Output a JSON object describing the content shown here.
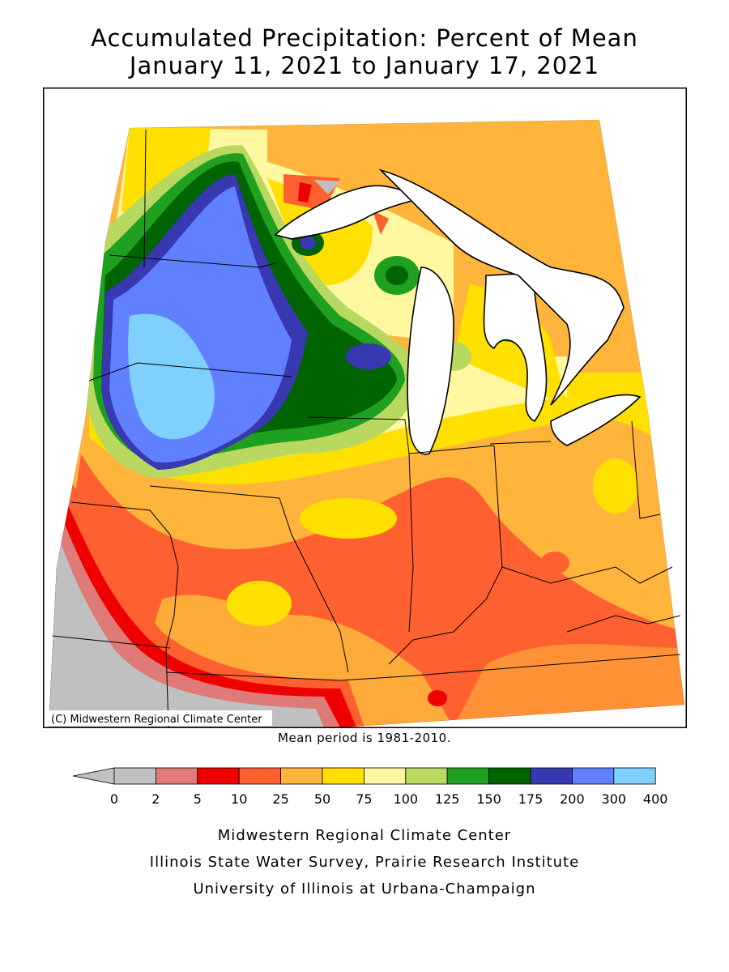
{
  "title_line1": "Accumulated Precipitation: Percent of Mean",
  "title_line2": "January 11, 2021 to January 17, 2021",
  "copyright": "(C) Midwestern Regional Climate Center",
  "mean_note": "Mean period is 1981-2010.",
  "legend": {
    "ticks": [
      "0",
      "2",
      "5",
      "10",
      "25",
      "50",
      "75",
      "100",
      "125",
      "150",
      "175",
      "200",
      "300",
      "400"
    ],
    "colors": [
      "#c0c0c0",
      "#e07a78",
      "#ee0000",
      "#ff6030",
      "#ffb43c",
      "#ffe000",
      "#fff8a0",
      "#b8d860",
      "#20a020",
      "#006400",
      "#3838b0",
      "#6080ff",
      "#80d0ff"
    ],
    "underflow_color": "#c0c0c0"
  },
  "credits": {
    "line1": "Midwestern Regional Climate Center",
    "line2": "Illinois State Water Survey, Prairie Research Institute",
    "line3": "University of Illinois at Urbana-Champaign"
  }
}
